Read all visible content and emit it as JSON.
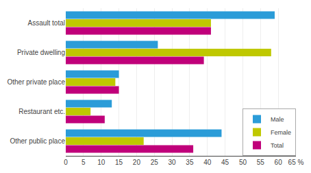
{
  "chart_data": {
    "type": "bar",
    "orientation": "horizontal",
    "categories": [
      "Other public place",
      "Restaurant etc.",
      "Other private place",
      "Private dwelling",
      "Assault total"
    ],
    "series": [
      {
        "name": "Male",
        "color": "#2b9cd8",
        "values": [
          44,
          13,
          15,
          26,
          59
        ]
      },
      {
        "name": "Female",
        "color": "#bfc800",
        "values": [
          22,
          7,
          14,
          58,
          41
        ]
      },
      {
        "name": "Total",
        "color": "#c0007a",
        "values": [
          36,
          11,
          15,
          39,
          41
        ]
      }
    ],
    "xlim": [
      0,
      65
    ],
    "xticks": [
      0,
      5,
      10,
      15,
      20,
      25,
      30,
      35,
      40,
      45,
      50,
      55,
      60,
      {
        "value": 65,
        "label": "65 %"
      }
    ],
    "grid": true,
    "legend": "lower right"
  }
}
